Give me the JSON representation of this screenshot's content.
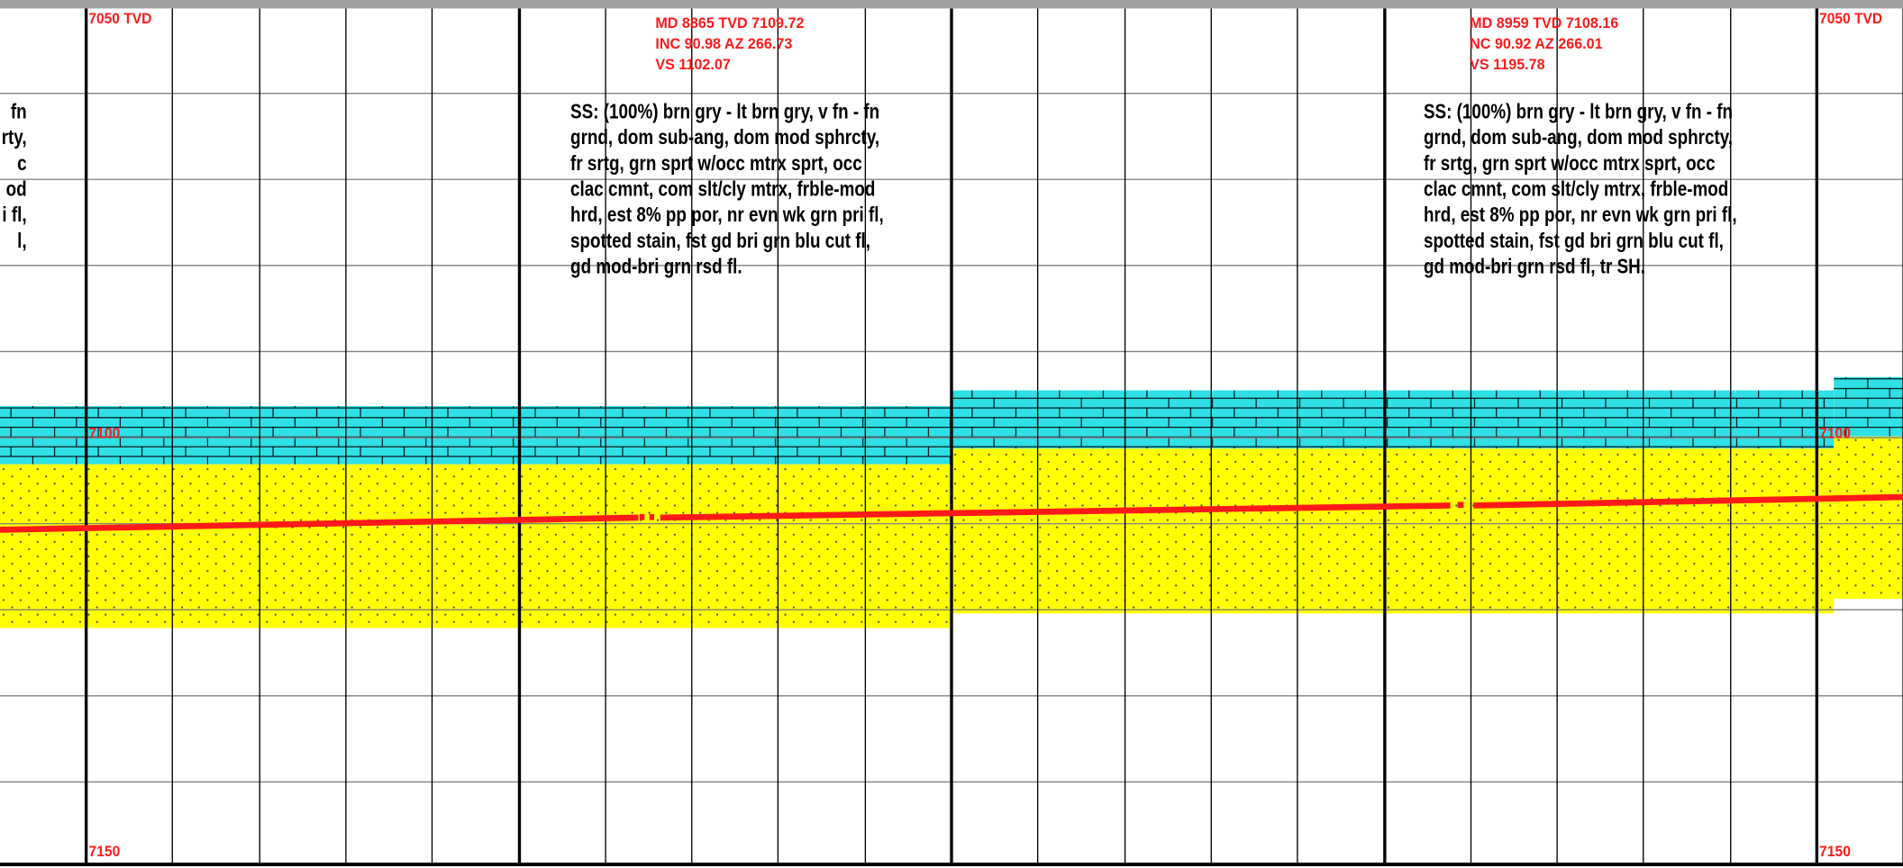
{
  "depth_labels": [
    "7050 TVD",
    "7100",
    "7150"
  ],
  "survey_annotations": [
    [
      "MD 8865 TVD 7109.72",
      "INC 90.98 AZ 266.73",
      "VS 1102.07"
    ],
    [
      "MD 8959 TVD 7108.16",
      "NC 90.92 AZ 266.01",
      "VS 1195.78"
    ]
  ],
  "lithology_descriptions": [
    [
      "fn",
      "rty,",
      "c",
      "od",
      "i fl,",
      "l,"
    ],
    [
      "SS: (100%) brn gry - lt brn gry, v fn - fn",
      "grnd, dom sub-ang, dom mod sphrcty,",
      "fr srtg, grn sprt w/occ mtrx sprt, occ",
      "clac cmnt, com slt/cly mtrx, frble-mod",
      "hrd, est 8% pp por, nr evn wk grn pri fl,",
      "spotted stain, fst gd bri grn blu cut fl,",
      "gd mod-bri grn rsd fl."
    ],
    [
      "SS: (100%) brn gry - lt brn gry, v fn - fn",
      "grnd, dom sub-ang, dom mod sphrcty,",
      "fr srtg, grn sprt w/occ mtrx sprt, occ",
      "clac cmnt, com slt/cly mtrx, frble-mod",
      "hrd, est 8% pp por, nr evn wk grn pri fl,",
      "spotted stain, fst gd bri grn blu cut fl,",
      "gd mod-bri grn rsd fl, tr SH."
    ]
  ]
}
